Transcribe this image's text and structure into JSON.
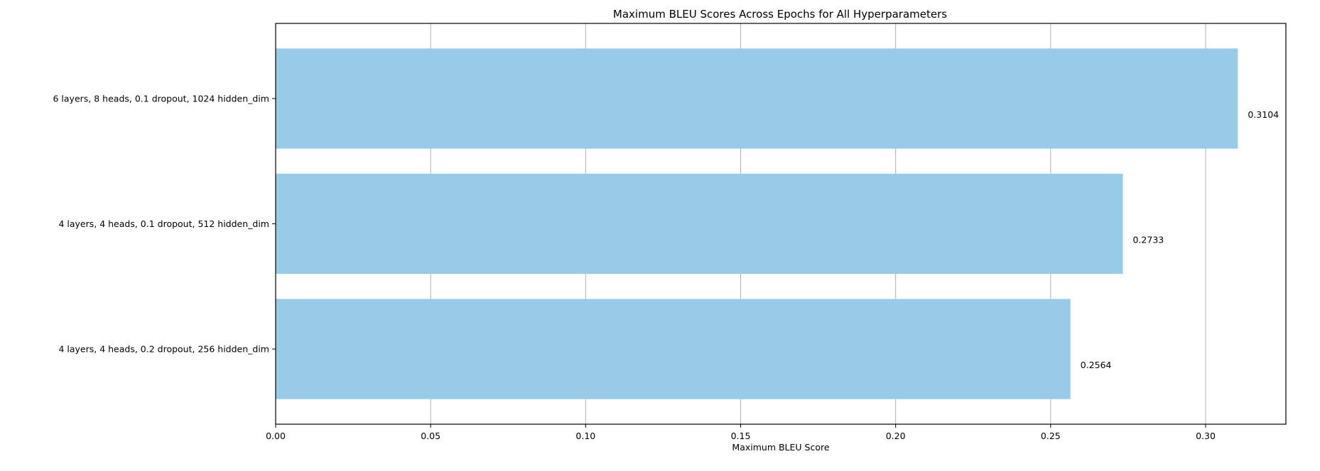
{
  "chart_data": {
    "type": "bar",
    "orientation": "horizontal",
    "title": "Maximum BLEU Scores Across Epochs for All Hyperparameters",
    "xlabel": "Maximum BLEU Score",
    "ylabel": "",
    "categories": [
      "6 layers, 8 heads, 0.1 dropout, 1024 hidden_dim",
      "4 layers, 4 heads, 0.1 dropout, 512 hidden_dim",
      "4 layers, 4 heads, 0.2 dropout, 256 hidden_dim"
    ],
    "values": [
      0.3104,
      0.2733,
      0.2564
    ],
    "value_labels": [
      "0.3104",
      "0.2733",
      "0.2564"
    ],
    "xlim": [
      0,
      0.3259
    ],
    "xticks": [
      0.0,
      0.05,
      0.1,
      0.15,
      0.2,
      0.25,
      0.3
    ],
    "xtick_labels": [
      "0.00",
      "0.05",
      "0.10",
      "0.15",
      "0.20",
      "0.25",
      "0.30"
    ],
    "grid": "x-axis only",
    "legend": "none",
    "colors": {
      "bar": "#97cbe7",
      "grid": "#b0b0b0",
      "axes": "#000000",
      "text": "#000000"
    }
  }
}
